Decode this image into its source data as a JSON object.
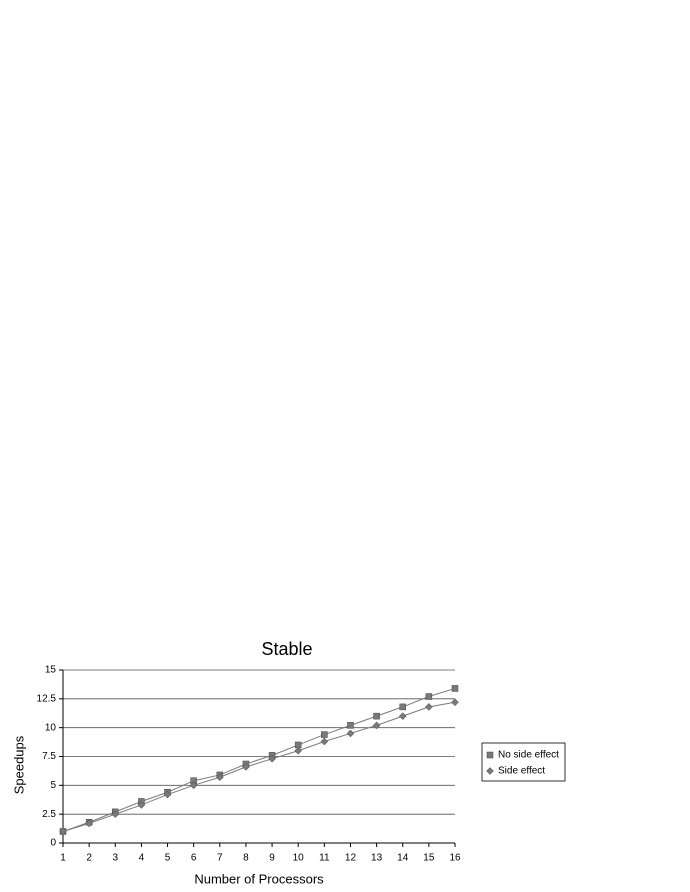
{
  "chart_data": {
    "type": "line",
    "title": "Stable",
    "x_label": "Number of Processors",
    "y_label": "Speedups",
    "x": [
      1,
      2,
      3,
      4,
      5,
      6,
      7,
      8,
      9,
      10,
      11,
      12,
      13,
      14,
      15,
      16
    ],
    "xlim": [
      1,
      16
    ],
    "xticks": [
      1,
      2,
      3,
      4,
      5,
      6,
      7,
      8,
      9,
      10,
      11,
      12,
      13,
      14,
      15,
      16
    ],
    "ylim": [
      0,
      15
    ],
    "yticks": [
      0,
      2.5,
      5,
      7.5,
      10,
      12.5,
      15
    ],
    "grid": true,
    "legend": "right",
    "series": [
      {
        "name": "No side effect",
        "color": "#7a7a7a",
        "marker": "square",
        "values": [
          1.0,
          1.8,
          2.7,
          3.6,
          4.4,
          5.4,
          5.9,
          6.85,
          7.6,
          8.5,
          9.4,
          10.2,
          11.0,
          11.8,
          12.7,
          13.4
        ]
      },
      {
        "name": "Side effect",
        "color": "#7a7a7a",
        "marker": "diamond",
        "values": [
          1.0,
          1.7,
          2.5,
          3.3,
          4.2,
          5.0,
          5.7,
          6.6,
          7.3,
          8.0,
          8.8,
          9.5,
          10.2,
          11.0,
          11.8,
          12.2
        ]
      }
    ]
  }
}
